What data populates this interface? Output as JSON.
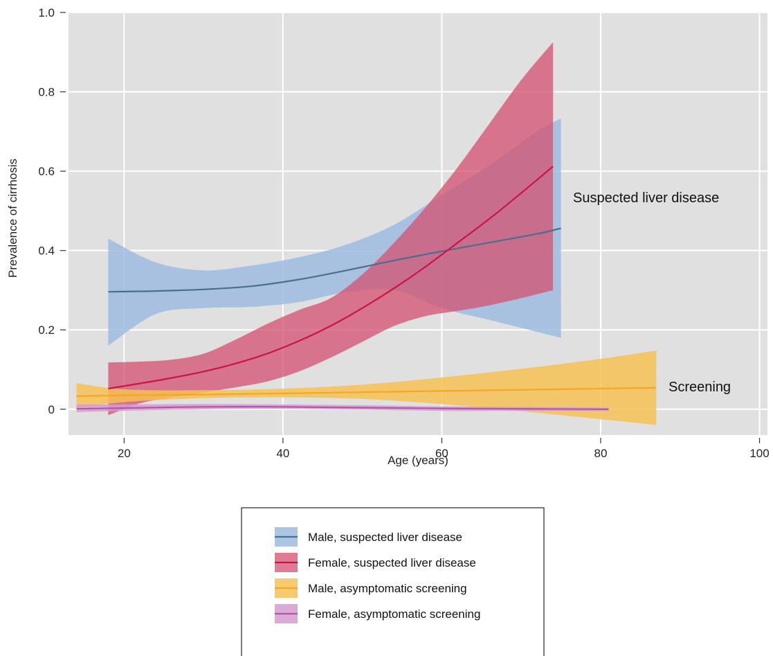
{
  "chart_data": {
    "type": "line",
    "title": "",
    "xlabel": "Age (years)",
    "ylabel": "Prevalence of cirrhosis",
    "xlim": [
      13,
      101
    ],
    "ylim": [
      -0.065,
      1.0
    ],
    "xticks": [
      20,
      40,
      60,
      80,
      100
    ],
    "xtick_labels": [
      "20",
      "40",
      "60",
      "80",
      "100"
    ],
    "yticks": [
      0,
      0.2,
      0.4,
      0.6,
      0.8,
      1.0
    ],
    "ytick_labels": [
      "0",
      "0.2",
      "0.4",
      "0.6",
      "0.8",
      "1.0"
    ],
    "grid": true,
    "background": "#e0e0e0",
    "legend_position": "bottom-center",
    "annotations": [
      {
        "text": "Suspected liver disease",
        "x": 77,
        "y": 0.53
      },
      {
        "text": "Screening",
        "x": 89,
        "y": 0.055
      }
    ],
    "series": [
      {
        "name": "Male, suspected liver disease",
        "line_color": "#4a6f8c",
        "band_color": "#9dbbe0",
        "band_opacity": 0.85,
        "x": [
          18,
          24,
          30,
          36,
          42,
          48,
          54,
          60,
          66,
          72,
          75
        ],
        "y": [
          0.296,
          0.298,
          0.302,
          0.31,
          0.327,
          0.35,
          0.375,
          0.398,
          0.42,
          0.442,
          0.456
        ],
        "lower": [
          0.16,
          0.24,
          0.255,
          0.258,
          0.27,
          0.295,
          0.3,
          0.255,
          0.225,
          0.195,
          0.18
        ],
        "upper": [
          0.43,
          0.37,
          0.35,
          0.362,
          0.383,
          0.415,
          0.465,
          0.54,
          0.615,
          0.7,
          0.733
        ]
      },
      {
        "name": "Female, suspected liver disease",
        "line_color": "#c8144a",
        "band_color": "#d4506f",
        "band_opacity": 0.75,
        "x": [
          18,
          22,
          26,
          30,
          34,
          38,
          42,
          46,
          50,
          54,
          58,
          62,
          66,
          70,
          74
        ],
        "y": [
          0.052,
          0.065,
          0.079,
          0.095,
          0.115,
          0.14,
          0.172,
          0.21,
          0.255,
          0.305,
          0.36,
          0.42,
          0.48,
          0.545,
          0.612
        ],
        "lower": [
          -0.015,
          0.015,
          0.03,
          0.042,
          0.055,
          0.07,
          0.095,
          0.13,
          0.17,
          0.21,
          0.235,
          0.248,
          0.262,
          0.28,
          0.3
        ],
        "upper": [
          0.118,
          0.12,
          0.125,
          0.14,
          0.175,
          0.215,
          0.25,
          0.28,
          0.34,
          0.42,
          0.51,
          0.61,
          0.72,
          0.83,
          0.925
        ]
      },
      {
        "name": "Male, asymptomatic screening",
        "line_color": "#f5a623",
        "band_color": "#f7c155",
        "band_opacity": 0.85,
        "x": [
          14,
          20,
          30,
          40,
          50,
          60,
          70,
          80,
          87
        ],
        "y": [
          0.033,
          0.035,
          0.037,
          0.04,
          0.043,
          0.046,
          0.049,
          0.052,
          0.054
        ],
        "lower": [
          0.002,
          0.018,
          0.028,
          0.03,
          0.026,
          0.013,
          -0.005,
          -0.025,
          -0.04
        ],
        "upper": [
          0.066,
          0.05,
          0.048,
          0.052,
          0.062,
          0.08,
          0.102,
          0.127,
          0.148
        ]
      },
      {
        "name": "Female, asymptomatic screening",
        "line_color": "#b355a8",
        "band_color": "#d59bd0",
        "band_opacity": 0.85,
        "x": [
          14,
          20,
          30,
          40,
          50,
          60,
          70,
          81
        ],
        "y": [
          0.001,
          0.003,
          0.006,
          0.006,
          0.004,
          0.002,
          0.001,
          0.0
        ],
        "lower": [
          -0.007,
          -0.004,
          0.0,
          0.001,
          -0.001,
          -0.004,
          -0.004,
          -0.004
        ],
        "upper": [
          0.012,
          0.012,
          0.013,
          0.012,
          0.01,
          0.007,
          0.006,
          0.004
        ]
      }
    ]
  }
}
